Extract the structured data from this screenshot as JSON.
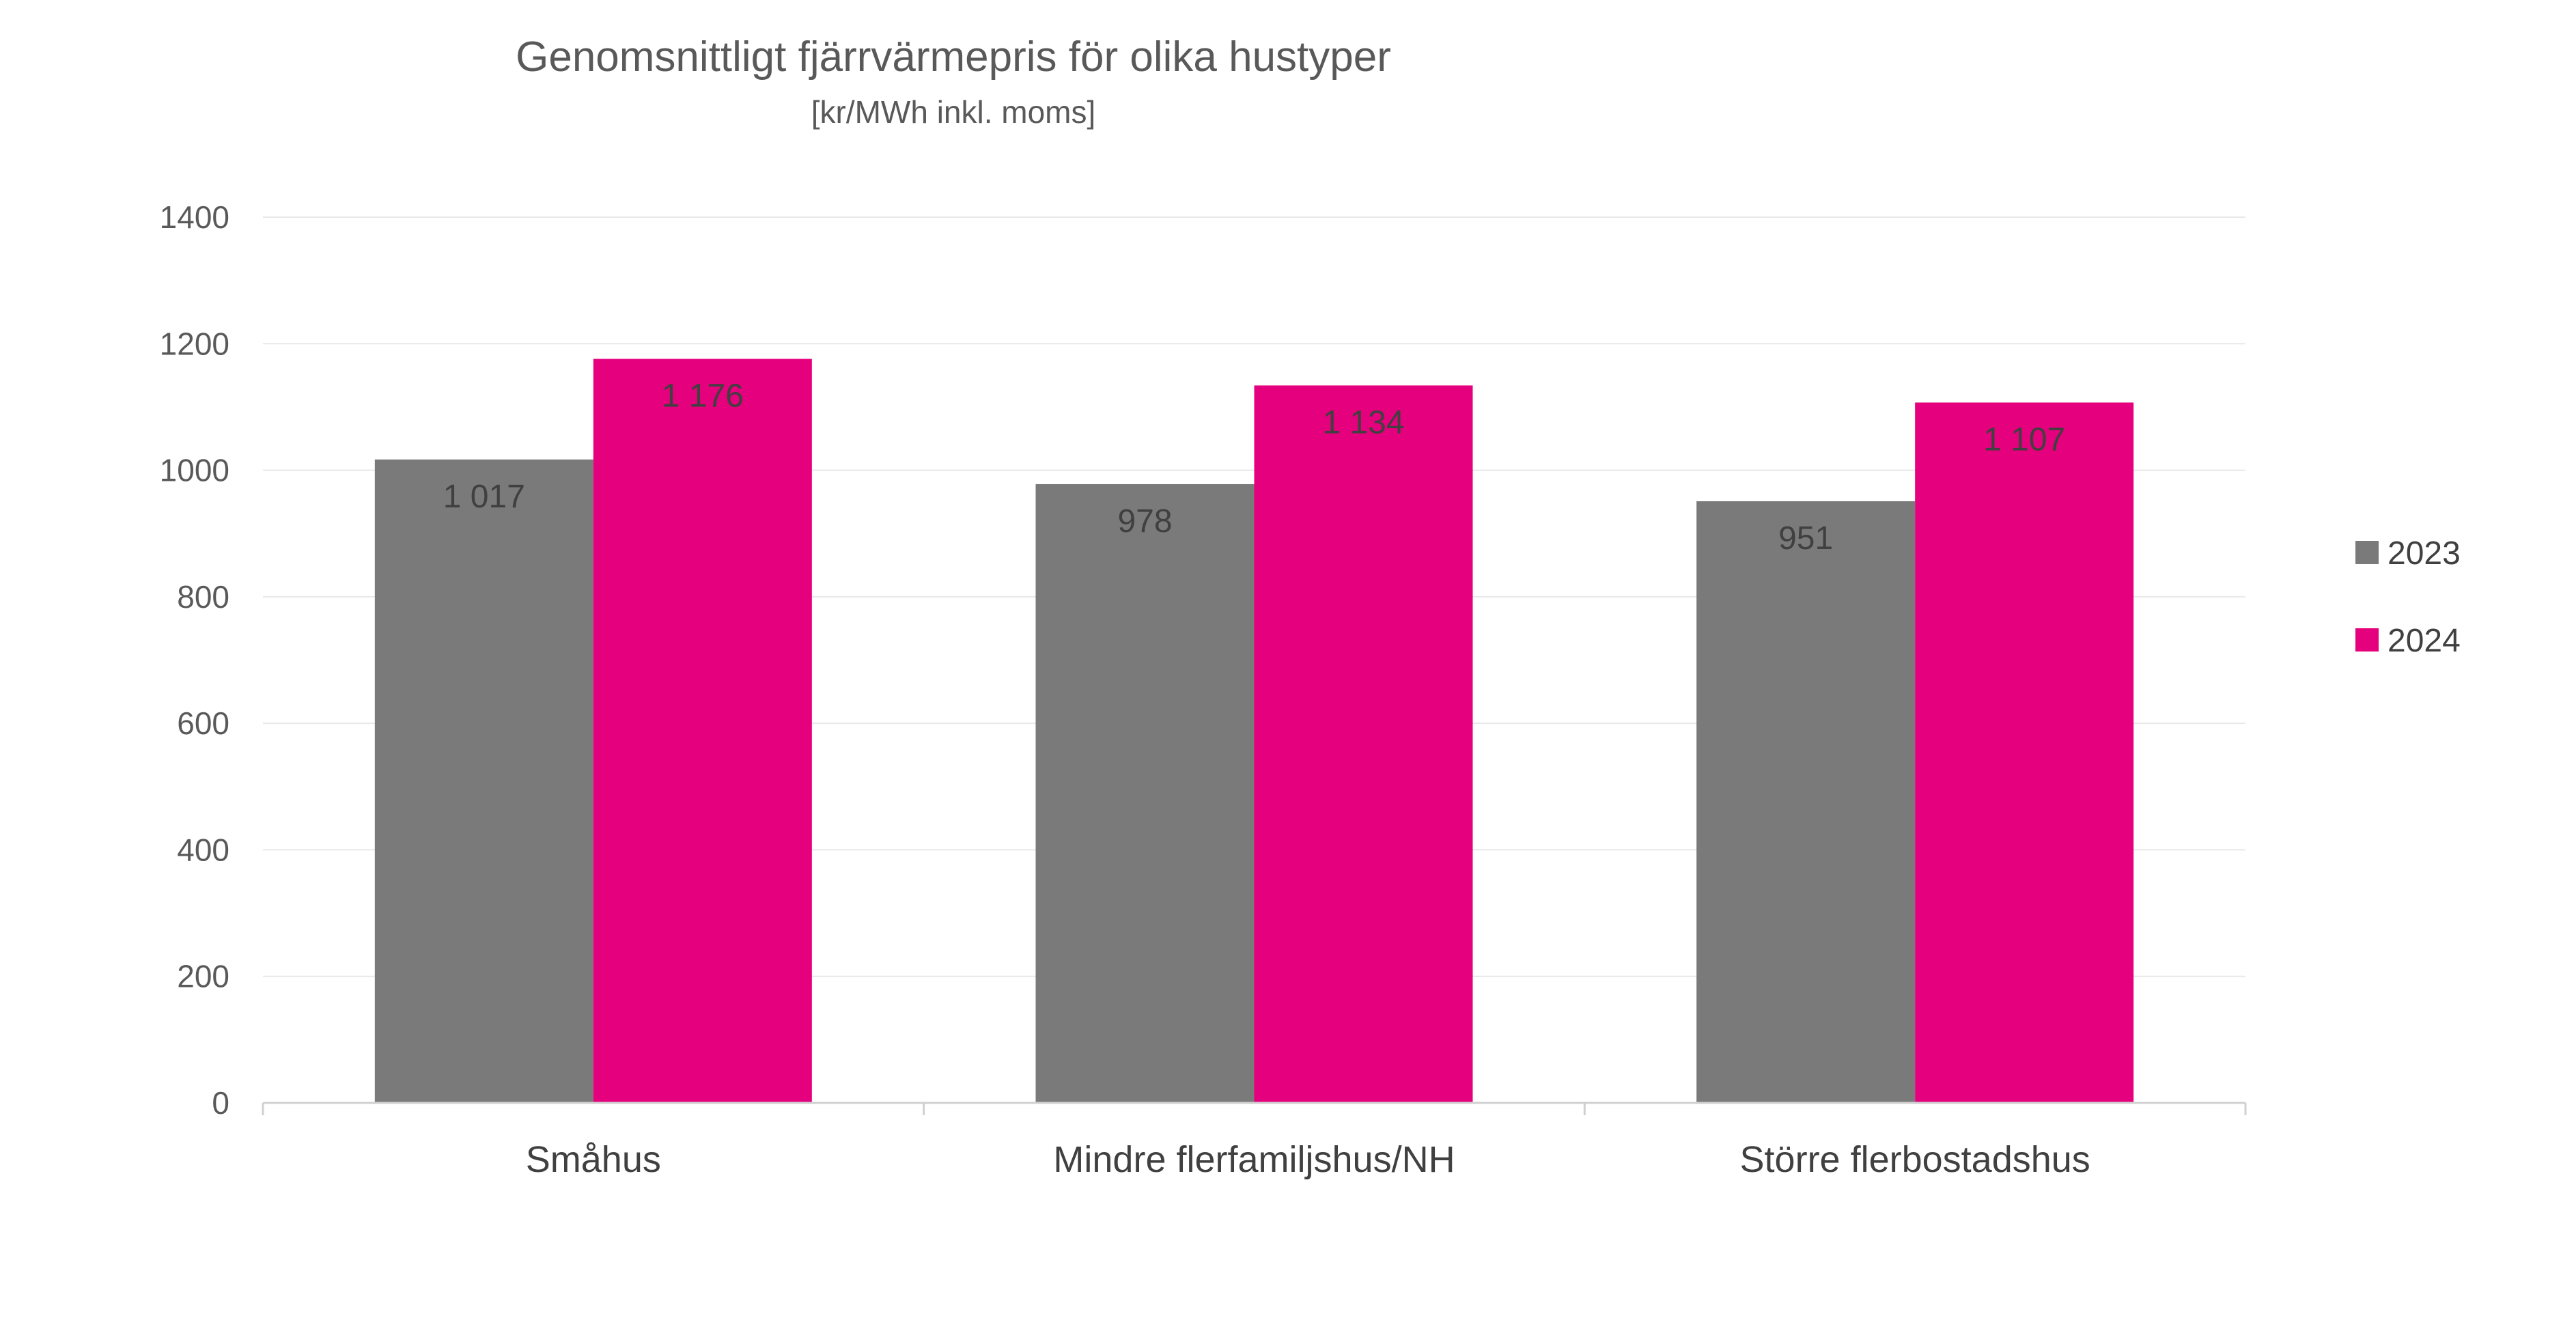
{
  "chart_data": {
    "type": "bar",
    "title": "Genomsnittligt fjärrvärmepris för olika hustyper",
    "subtitle": "[kr/MWh inkl. moms]",
    "categories": [
      "Småhus",
      "Mindre flerfamiljshus/NH",
      "Större flerbostadshus"
    ],
    "series": [
      {
        "name": "2023",
        "values": [
          1017,
          978,
          951
        ],
        "labels": [
          "1 017",
          "978",
          "951"
        ],
        "color": "#7a7a7a"
      },
      {
        "name": "2024",
        "values": [
          1176,
          1134,
          1107
        ],
        "labels": [
          "1 176",
          "1 134",
          "1 107"
        ],
        "color": "#e5007d"
      }
    ],
    "ylim": [
      0,
      1400
    ],
    "yticks": [
      0,
      200,
      400,
      600,
      800,
      1000,
      1200,
      1400
    ],
    "grid": true,
    "legend_position": "right"
  }
}
